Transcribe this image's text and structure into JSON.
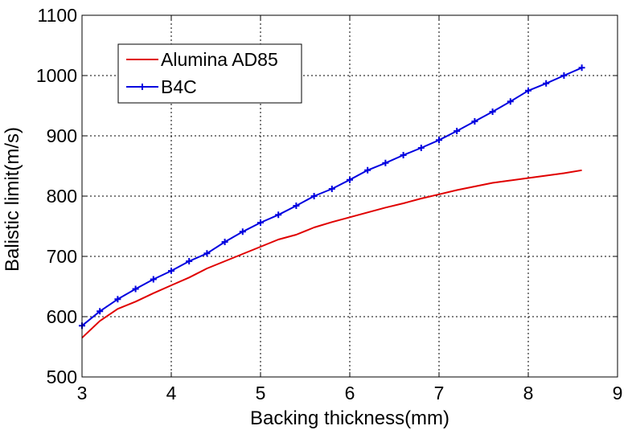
{
  "chart_data": {
    "type": "line",
    "title": "",
    "xlabel": "Backing thickness(mm)",
    "ylabel": "Balistic limit(m/s)",
    "xlim": [
      3,
      9
    ],
    "ylim": [
      500,
      1100
    ],
    "xticks": [
      3,
      4,
      5,
      6,
      7,
      8,
      9
    ],
    "yticks": [
      500,
      600,
      700,
      800,
      900,
      1000,
      1100
    ],
    "grid": true,
    "legend_position": "top-left",
    "series": [
      {
        "name": "Alumina AD85",
        "color": "#e00000",
        "marker": "none",
        "x": [
          3.0,
          3.2,
          3.4,
          3.6,
          3.8,
          4.0,
          4.2,
          4.4,
          4.6,
          4.8,
          5.0,
          5.2,
          5.4,
          5.6,
          5.8,
          6.0,
          6.2,
          6.4,
          6.6,
          6.8,
          7.0,
          7.2,
          7.4,
          7.6,
          7.8,
          8.0,
          8.2,
          8.4,
          8.6
        ],
        "y": [
          565,
          593,
          613,
          625,
          639,
          652,
          665,
          680,
          692,
          704,
          716,
          728,
          736,
          748,
          757,
          765,
          773,
          781,
          788,
          796,
          803,
          810,
          816,
          822,
          826,
          830,
          834,
          838,
          843
        ]
      },
      {
        "name": "B4C",
        "color": "#0000e0",
        "marker": "plus",
        "x": [
          3.0,
          3.2,
          3.4,
          3.6,
          3.8,
          4.0,
          4.2,
          4.4,
          4.6,
          4.8,
          5.0,
          5.2,
          5.4,
          5.6,
          5.8,
          6.0,
          6.2,
          6.4,
          6.6,
          6.8,
          7.0,
          7.2,
          7.4,
          7.6,
          7.8,
          8.0,
          8.2,
          8.4,
          8.6
        ],
        "y": [
          585,
          609,
          629,
          646,
          662,
          676,
          692,
          705,
          724,
          741,
          756,
          769,
          784,
          800,
          812,
          827,
          843,
          855,
          868,
          880,
          893,
          908,
          924,
          940,
          957,
          975,
          987,
          1000,
          1013
        ]
      }
    ]
  }
}
